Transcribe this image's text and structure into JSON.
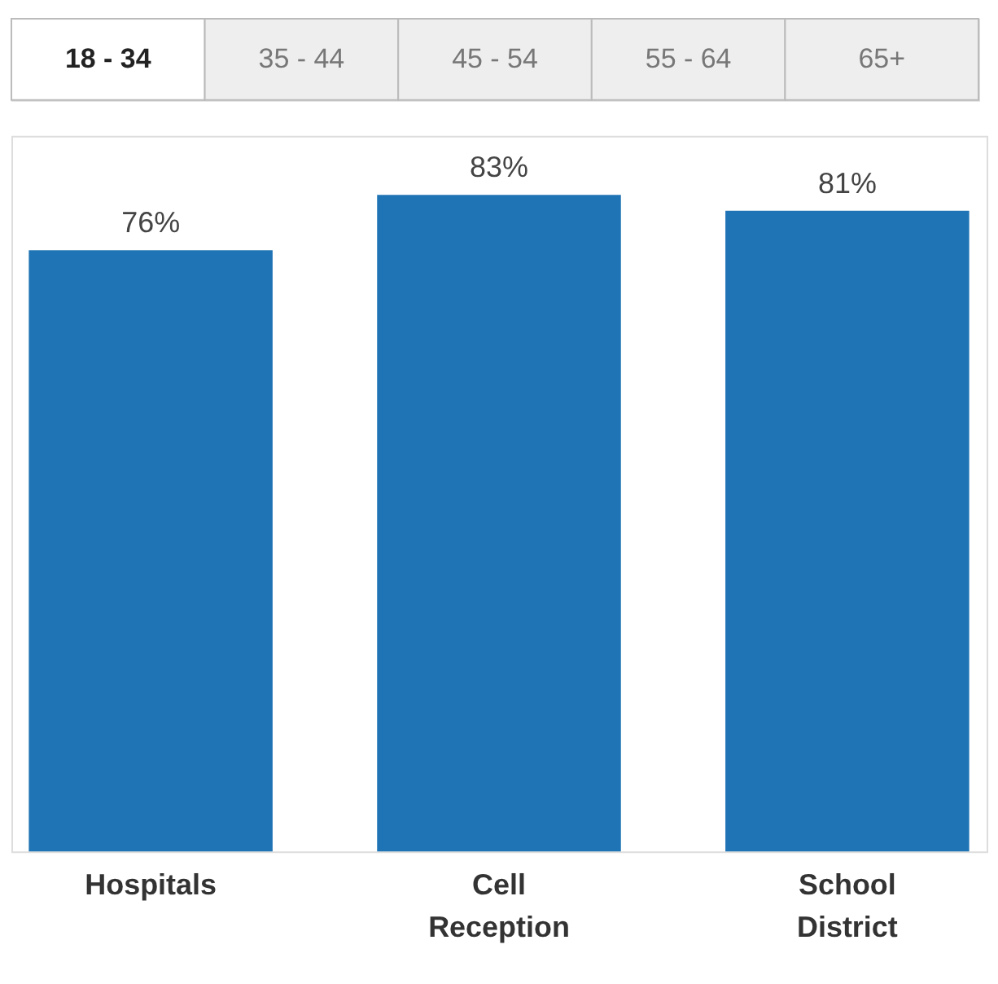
{
  "chart_data": {
    "type": "bar",
    "categories": [
      "Hospitals",
      "Cell Reception",
      "School District"
    ],
    "values": [
      76,
      83,
      81
    ],
    "color": "#1f74b5",
    "value_labels": [
      "76%",
      "83%",
      "81%"
    ],
    "annotations": [
      "18 - 34",
      "35 - 44",
      "45 - 54",
      "55 - 64",
      "65+"
    ]
  }
}
